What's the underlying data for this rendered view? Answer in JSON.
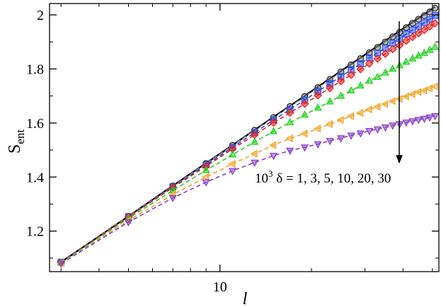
{
  "chart_data": {
    "type": "line",
    "xlabel": "l",
    "ylabel": {
      "base": "S",
      "sub": "ent"
    },
    "annotation": {
      "base": "10",
      "sup": "3",
      "text": " δ = 1, 3, 5, 10, 20, 30"
    },
    "log_x": true,
    "x": [
      3,
      5,
      7,
      9,
      11,
      13,
      15,
      17,
      19,
      21,
      23,
      25,
      27,
      29,
      31,
      33,
      35,
      37,
      39,
      41,
      43,
      45,
      47,
      49,
      51
    ],
    "xlim": [
      2.75,
      52.5
    ],
    "xticks": [
      10
    ],
    "xminorticks": [
      3,
      4,
      5,
      6,
      7,
      8,
      9,
      20,
      30,
      40,
      50
    ],
    "ylim": [
      1.05,
      2.042
    ],
    "yticks": [
      1.2,
      1.4,
      1.6,
      1.8,
      2
    ],
    "yminorticks": [
      1.1,
      1.3,
      1.5,
      1.7,
      1.9
    ],
    "series": [
      {
        "color": "#000000",
        "style": "solid",
        "marker": "none",
        "values": [
          1.085,
          1.255,
          1.368,
          1.451,
          1.518,
          1.574,
          1.622,
          1.663,
          1.7,
          1.734,
          1.764,
          1.792,
          1.818,
          1.841,
          1.864,
          1.884,
          1.904,
          1.923,
          1.94,
          1.957,
          1.973,
          1.988,
          2.002,
          2.016,
          2.03
        ]
      },
      {
        "color": "#8a8a8a",
        "style": "dashed",
        "marker": "circle",
        "values": [
          1.085,
          1.255,
          1.367,
          1.45,
          1.517,
          1.573,
          1.62,
          1.661,
          1.698,
          1.731,
          1.761,
          1.789,
          1.815,
          1.838,
          1.86,
          1.88,
          1.9,
          1.919,
          1.936,
          1.953,
          1.969,
          1.984,
          1.997,
          2.011,
          2.025
        ]
      },
      {
        "color": "#2a4ee8",
        "style": "dashed",
        "marker": "square",
        "values": [
          1.085,
          1.253,
          1.364,
          1.445,
          1.51,
          1.564,
          1.611,
          1.65,
          1.685,
          1.717,
          1.746,
          1.772,
          1.797,
          1.819,
          1.841,
          1.859,
          1.878,
          1.896,
          1.912,
          1.929,
          1.944,
          1.958,
          1.971,
          1.984,
          1.998
        ]
      },
      {
        "color": "#e8201c",
        "style": "dashed",
        "marker": "diamond",
        "values": [
          1.084,
          1.252,
          1.361,
          1.44,
          1.504,
          1.556,
          1.601,
          1.638,
          1.671,
          1.702,
          1.729,
          1.755,
          1.778,
          1.799,
          1.82,
          1.838,
          1.856,
          1.873,
          1.888,
          1.904,
          1.918,
          1.932,
          1.944,
          1.957,
          1.969
        ]
      },
      {
        "color": "#22d022",
        "style": "dashed",
        "marker": "triangle-up",
        "values": [
          1.083,
          1.247,
          1.351,
          1.425,
          1.483,
          1.53,
          1.569,
          1.602,
          1.63,
          1.656,
          1.679,
          1.7,
          1.72,
          1.738,
          1.756,
          1.77,
          1.786,
          1.8,
          1.813,
          1.826,
          1.838,
          1.849,
          1.859,
          1.87,
          1.881
        ]
      },
      {
        "color": "#f3a428",
        "style": "dashed",
        "marker": "triangle-left",
        "values": [
          1.081,
          1.239,
          1.335,
          1.4,
          1.449,
          1.486,
          1.518,
          1.543,
          1.561,
          1.579,
          1.596,
          1.611,
          1.625,
          1.637,
          1.65,
          1.66,
          1.67,
          1.681,
          1.689,
          1.698,
          1.706,
          1.714,
          1.72,
          1.728,
          1.735
        ]
      },
      {
        "color": "#8a3fc8",
        "style": "dashed",
        "marker": "triangle-down",
        "values": [
          1.08,
          1.233,
          1.323,
          1.381,
          1.423,
          1.454,
          1.479,
          1.498,
          1.51,
          1.522,
          1.534,
          1.544,
          1.554,
          1.562,
          1.571,
          1.577,
          1.584,
          1.591,
          1.596,
          1.602,
          1.607,
          1.612,
          1.616,
          1.621,
          1.626
        ]
      }
    ]
  }
}
